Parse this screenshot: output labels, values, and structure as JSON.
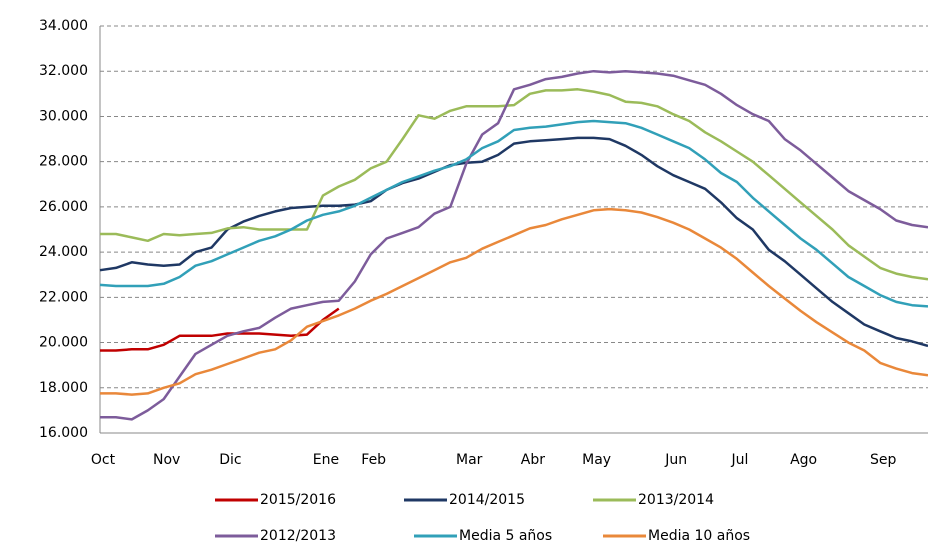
{
  "chart_data": {
    "type": "line",
    "categories": [
      "Oct",
      null,
      null,
      null,
      "Nov",
      null,
      null,
      null,
      "Dic",
      null,
      null,
      null,
      null,
      null,
      "Ene",
      null,
      null,
      "Feb",
      null,
      null,
      null,
      null,
      null,
      "Mar",
      null,
      null,
      null,
      "Abr",
      null,
      null,
      null,
      "May",
      null,
      null,
      null,
      null,
      "Jun",
      null,
      null,
      null,
      "Jul",
      null,
      null,
      null,
      "Ago",
      null,
      null,
      null,
      null,
      "Sep",
      null,
      null,
      null
    ],
    "ylim": [
      16000,
      34000
    ],
    "yticks": [
      {
        "value": 16000,
        "label": "16.000"
      },
      {
        "value": 18000,
        "label": "18.000"
      },
      {
        "value": 20000,
        "label": "20.000"
      },
      {
        "value": 22000,
        "label": "22.000"
      },
      {
        "value": 24000,
        "label": "24.000"
      },
      {
        "value": 26000,
        "label": "26.000"
      },
      {
        "value": 28000,
        "label": "28.000"
      },
      {
        "value": 30000,
        "label": "30.000"
      },
      {
        "value": 32000,
        "label": "32.000"
      },
      {
        "value": 34000,
        "label": "34.000"
      }
    ],
    "grid": true,
    "legend": "bottom",
    "series": [
      {
        "name": "2015/2016",
        "color": "#c00000",
        "values": [
          19650,
          19650,
          19700,
          19700,
          19900,
          20300,
          20300,
          20300,
          20400,
          20400,
          20400,
          20350,
          20300,
          20350,
          21000,
          21500,
          null,
          null,
          null,
          null,
          null,
          null,
          null,
          null,
          null,
          null,
          null,
          null,
          null,
          null,
          null,
          null,
          null,
          null,
          null,
          null,
          null,
          null,
          null,
          null,
          null,
          null,
          null,
          null,
          null,
          null,
          null,
          null,
          null,
          null,
          null,
          null,
          null
        ]
      },
      {
        "name": "2014/2015",
        "color": "#1f3864",
        "values": [
          23200,
          23300,
          23550,
          23450,
          23400,
          23450,
          24000,
          24200,
          25000,
          25350,
          25600,
          25800,
          25950,
          26000,
          26050,
          26050,
          26100,
          26250,
          26750,
          27050,
          27250,
          27550,
          27850,
          27950,
          28000,
          28300,
          28800,
          28900,
          28950,
          29000,
          29050,
          29050,
          29000,
          28700,
          28300,
          27800,
          27400,
          27100,
          26800,
          26200,
          25500,
          25000,
          24100,
          23600,
          23000,
          22400,
          21800,
          21300,
          20800,
          20500,
          20200,
          20050,
          19850
        ]
      },
      {
        "name": "2013/2014",
        "color": "#9bbb59",
        "values": [
          24800,
          24800,
          24650,
          24500,
          24800,
          24750,
          24800,
          24850,
          25050,
          25100,
          25000,
          25000,
          25000,
          25000,
          26500,
          26900,
          27200,
          27700,
          28000,
          29000,
          30050,
          29900,
          30250,
          30450,
          30450,
          30450,
          30500,
          31000,
          31150,
          31150,
          31200,
          31100,
          30950,
          30650,
          30600,
          30450,
          30100,
          29800,
          29300,
          28900,
          28450,
          28000,
          27400,
          26800,
          26200,
          25600,
          25000,
          24300,
          23800,
          23300,
          23050,
          22900,
          22800
        ]
      },
      {
        "name": "2012/2013",
        "color": "#7d5c9b",
        "values": [
          16700,
          16700,
          16600,
          17000,
          17500,
          18500,
          19500,
          19900,
          20300,
          20500,
          20650,
          21100,
          21500,
          21650,
          21800,
          21850,
          22700,
          23900,
          24600,
          24850,
          25100,
          25700,
          26000,
          27900,
          29200,
          29700,
          31200,
          31400,
          31650,
          31750,
          31900,
          32000,
          31950,
          32000,
          31950,
          31900,
          31800,
          31600,
          31400,
          31000,
          30500,
          30100,
          29800,
          29000,
          28500,
          27900,
          27300,
          26700,
          26300,
          25900,
          25400,
          25200,
          25100
        ]
      },
      {
        "name": "Media 5 años",
        "color": "#31a0b8",
        "values": [
          22550,
          22500,
          22500,
          22500,
          22600,
          22900,
          23400,
          23600,
          23900,
          24200,
          24500,
          24700,
          25000,
          25400,
          25650,
          25800,
          26050,
          26400,
          26750,
          27100,
          27350,
          27600,
          27800,
          28100,
          28600,
          28900,
          29400,
          29500,
          29550,
          29650,
          29750,
          29800,
          29750,
          29700,
          29500,
          29200,
          28900,
          28600,
          28100,
          27500,
          27100,
          26400,
          25800,
          25200,
          24600,
          24100,
          23500,
          22900,
          22500,
          22100,
          21800,
          21650,
          21600
        ]
      },
      {
        "name": "Media 10 años",
        "color": "#e9883a",
        "values": [
          17750,
          17750,
          17700,
          17750,
          18000,
          18200,
          18600,
          18800,
          19050,
          19300,
          19550,
          19700,
          20100,
          20700,
          20950,
          21200,
          21500,
          21850,
          22150,
          22500,
          22850,
          23200,
          23550,
          23750,
          24150,
          24450,
          24750,
          25050,
          25200,
          25450,
          25650,
          25850,
          25900,
          25850,
          25750,
          25550,
          25300,
          25000,
          24600,
          24200,
          23700,
          23100,
          22500,
          21950,
          21400,
          20900,
          20450,
          20000,
          19650,
          19100,
          18850,
          18650,
          18550
        ]
      }
    ]
  }
}
